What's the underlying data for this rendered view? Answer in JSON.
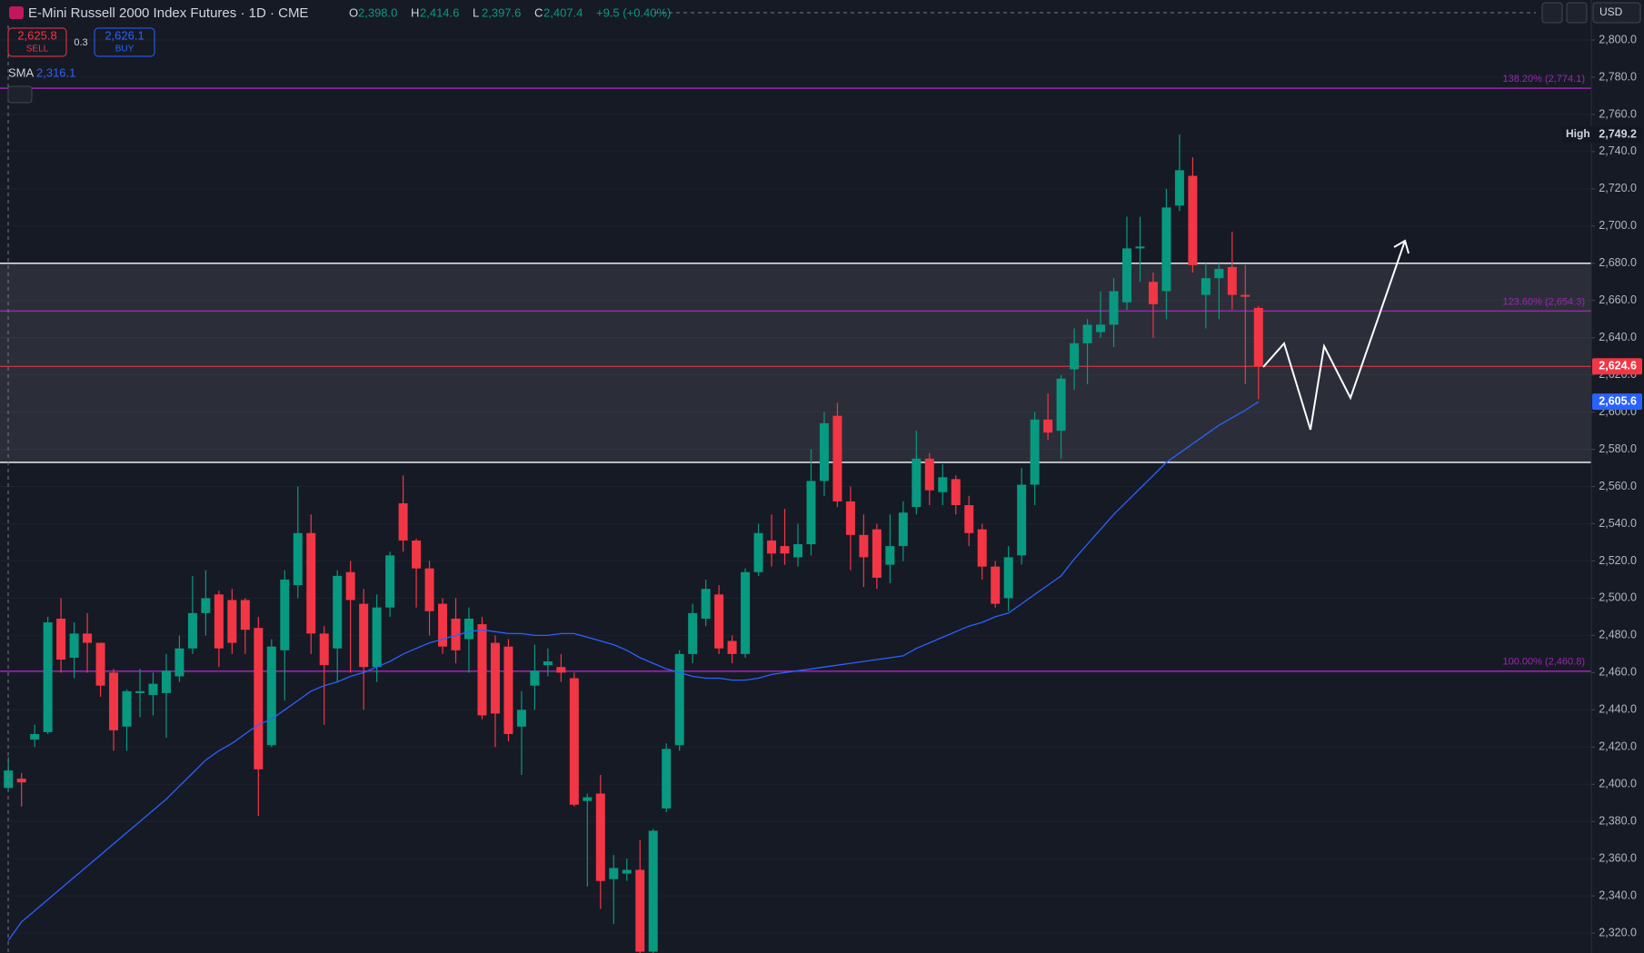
{
  "header": {
    "title": "E-Mini Russell 2000 Index Futures · 1D · CME",
    "ohlc": [
      {
        "key": "O",
        "value": "2,398.0"
      },
      {
        "key": "H",
        "value": "2,414.6"
      },
      {
        "key": "L",
        "value": "2,397.6"
      },
      {
        "key": "C",
        "value": "2,407.4"
      }
    ],
    "change": "+9.5 (+0.40%)",
    "sell": {
      "price": "2,625.8",
      "label": "SELL"
    },
    "spread": "0.3",
    "buy": {
      "price": "2,626.1",
      "label": "BUY"
    },
    "indicator": {
      "name": "SMA",
      "value": "2,316.1"
    },
    "currency": "USD"
  },
  "chart_data": {
    "type": "candlestick",
    "up_color": "#089981",
    "down_color": "#f23645",
    "ylim": [
      2309.3,
      2821.5
    ],
    "yticks": [
      {
        "value": 2320,
        "label": "2,320.0"
      },
      {
        "value": 2340,
        "label": "2,340.0"
      },
      {
        "value": 2360,
        "label": "2,360.0"
      },
      {
        "value": 2380,
        "label": "2,380.0"
      },
      {
        "value": 2400,
        "label": "2,400.0"
      },
      {
        "value": 2420,
        "label": "2,420.0"
      },
      {
        "value": 2440,
        "label": "2,440.0"
      },
      {
        "value": 2460,
        "label": "2,460.0"
      },
      {
        "value": 2480,
        "label": "2,480.0"
      },
      {
        "value": 2500,
        "label": "2,500.0"
      },
      {
        "value": 2520,
        "label": "2,520.0"
      },
      {
        "value": 2540,
        "label": "2,540.0"
      },
      {
        "value": 2560,
        "label": "2,560.0"
      },
      {
        "value": 2580,
        "label": "2,580.0"
      },
      {
        "value": 2600,
        "label": "2,600.0"
      },
      {
        "value": 2620,
        "label": "2,620.0"
      },
      {
        "value": 2640,
        "label": "2,640.0"
      },
      {
        "value": 2660,
        "label": "2,660.0"
      },
      {
        "value": 2680,
        "label": "2,680.0"
      },
      {
        "value": 2700,
        "label": "2,700.0"
      },
      {
        "value": 2720,
        "label": "2,720.0"
      },
      {
        "value": 2740,
        "label": "2,740.0"
      },
      {
        "value": 2760,
        "label": "2,760.0"
      },
      {
        "value": 2780,
        "label": "2,780.0"
      },
      {
        "value": 2800,
        "label": "2,800.0"
      }
    ],
    "grid": true,
    "open": [
      2398,
      2403,
      2424,
      2428,
      2489,
      2468,
      2481,
      2476,
      2460,
      2431,
      2449,
      2448,
      2449,
      2458,
      2473,
      2492,
      2502,
      2499,
      2499,
      2484,
      2421,
      2472,
      2507,
      2535,
      2481,
      2473,
      2514,
      2497,
      2463,
      2495,
      2551,
      2531,
      2516,
      2497,
      2489,
      2478,
      2486,
      2476,
      2474,
      2431,
      2453,
      2464,
      2463,
      2457,
      2391,
      2395,
      2349,
      2352,
      2354,
      2310,
      2387,
      2421,
      2470,
      2489,
      2502,
      2477,
      2470,
      2514,
      2531,
      2528,
      2522,
      2529,
      2563,
      2598,
      2552,
      2534,
      2537,
      2518,
      2528,
      2549,
      2575,
      2557,
      2564,
      2550,
      2537,
      2517,
      2500,
      2523,
      2561,
      2596,
      2590,
      2623,
      2637,
      2643,
      2647,
      2659,
      2688,
      2670,
      2665,
      2711,
      2727,
      2663,
      2672,
      2678,
      2663,
      2656
    ],
    "high": [
      2414.6,
      2406,
      2432,
      2490,
      2500,
      2487,
      2492,
      2476,
      2462,
      2451,
      2462,
      2460,
      2470,
      2480,
      2512,
      2515,
      2504,
      2505,
      2500,
      2490,
      2478,
      2515,
      2560,
      2545,
      2485,
      2515,
      2520,
      2505,
      2502,
      2525,
      2566,
      2532,
      2520,
      2500,
      2500,
      2495,
      2490,
      2480,
      2478,
      2450,
      2475,
      2473,
      2470,
      2460,
      2395,
      2405,
      2362,
      2360,
      2370,
      2376,
      2422,
      2472,
      2497,
      2510,
      2507,
      2480,
      2516,
      2540,
      2545,
      2548,
      2540,
      2580,
      2600,
      2605,
      2560,
      2545,
      2540,
      2545,
      2552,
      2590,
      2578,
      2572,
      2566,
      2555,
      2540,
      2520,
      2528,
      2570,
      2600,
      2610,
      2620,
      2645,
      2650,
      2665,
      2672,
      2705,
      2705,
      2675,
      2720,
      2749.2,
      2737,
      2680,
      2680,
      2697,
      2679,
      2657
    ],
    "low": [
      2397.6,
      2388,
      2420,
      2427,
      2460,
      2457,
      2460,
      2447,
      2418,
      2418,
      2436,
      2437,
      2425,
      2455,
      2470,
      2480,
      2463,
      2470,
      2470,
      2383,
      2420,
      2445,
      2500,
      2470,
      2432,
      2455,
      2460,
      2440,
      2455,
      2490,
      2525,
      2495,
      2480,
      2470,
      2465,
      2460,
      2435,
      2420,
      2423,
      2405,
      2440,
      2458,
      2455,
      2388,
      2345,
      2333,
      2325,
      2348,
      2309,
      2309,
      2385,
      2418,
      2465,
      2485,
      2470,
      2465,
      2468,
      2512,
      2517,
      2518,
      2517,
      2523,
      2555,
      2549,
      2515,
      2506,
      2505,
      2508,
      2520,
      2545,
      2550,
      2550,
      2545,
      2528,
      2510,
      2495,
      2493,
      2518,
      2550,
      2585,
      2575,
      2612,
      2615,
      2640,
      2635,
      2655,
      2670,
      2640,
      2650,
      2708,
      2675,
      2645,
      2650,
      2655,
      2615,
      2607
    ],
    "close": [
      2407.4,
      2401,
      2427,
      2487,
      2467,
      2481,
      2476,
      2453,
      2429,
      2450,
      2450,
      2454,
      2461,
      2473,
      2492,
      2500,
      2473,
      2476,
      2483,
      2408,
      2474,
      2510,
      2535,
      2481,
      2464,
      2512,
      2499,
      2463,
      2495,
      2523,
      2531,
      2516,
      2493,
      2474,
      2472,
      2489,
      2437,
      2438,
      2427,
      2440,
      2461,
      2466,
      2460,
      2389,
      2393,
      2348,
      2355,
      2354,
      2310,
      2375,
      2419,
      2470,
      2492,
      2505,
      2473,
      2470,
      2514,
      2535,
      2524,
      2524,
      2529,
      2563,
      2594,
      2552,
      2534,
      2522,
      2511,
      2528,
      2546,
      2575,
      2558,
      2565,
      2550,
      2535,
      2517,
      2497,
      2522,
      2561,
      2596,
      2589,
      2618,
      2637,
      2647,
      2647,
      2665,
      2688,
      2689,
      2658,
      2710,
      2730,
      2679,
      2672,
      2677,
      2663,
      2662,
      2624.6
    ],
    "sma": {
      "name": "SMA",
      "color": "#2962ff",
      "values": [
        2316.1,
        2326,
        2332,
        2338,
        2344,
        2350,
        2356,
        2362,
        2368,
        2374,
        2380,
        2386,
        2392,
        2399,
        2406,
        2413,
        2418,
        2422,
        2427,
        2432,
        2435,
        2440,
        2445,
        2450,
        2453,
        2455,
        2458,
        2460,
        2463,
        2466,
        2470,
        2473,
        2476,
        2478,
        2480,
        2482,
        2483,
        2482,
        2481,
        2481,
        2480,
        2480,
        2481,
        2481,
        2479,
        2477,
        2475,
        2472,
        2468,
        2465,
        2462,
        2460,
        2458,
        2457,
        2457,
        2456,
        2456,
        2457,
        2459,
        2460,
        2461,
        2462,
        2463,
        2464,
        2465,
        2466,
        2467,
        2468,
        2469,
        2473,
        2476,
        2479,
        2482,
        2485,
        2487,
        2490,
        2492,
        2497,
        2502,
        2507,
        2512,
        2521,
        2529,
        2537,
        2545,
        2552,
        2559,
        2566,
        2573,
        2578,
        2583,
        2588,
        2593,
        2597,
        2601,
        2605.6
      ]
    },
    "fib_levels": [
      {
        "value": 2774.1,
        "label": "138.20% (2,774.1)"
      },
      {
        "value": 2654.3,
        "label": "123.60% (2,654.3)"
      },
      {
        "value": 2460.8,
        "label": "100.00% (2,460.8)"
      }
    ],
    "fib_color": "#9c27b0",
    "zone": {
      "top": 2680,
      "bottom": 2573
    },
    "last_price": {
      "value": 2624.6,
      "label": "2,624.6",
      "color": "#f23645"
    },
    "sma_badge": {
      "value": 2605.6,
      "label": "2,605.6",
      "color": "#2962ff"
    },
    "high_badge": {
      "name": "High",
      "value": 2749.2,
      "label": "2,749.2"
    }
  }
}
